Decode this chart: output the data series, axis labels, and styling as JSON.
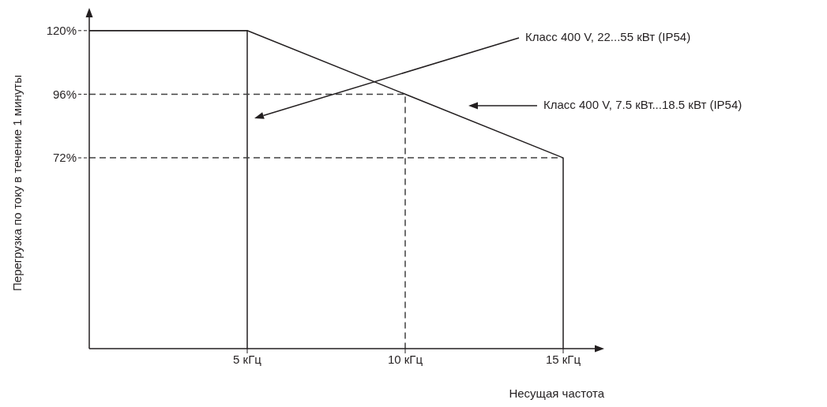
{
  "chart_data": {
    "type": "line",
    "xlabel": "Несущая частота",
    "ylabel": "Перегрузка по току в течение 1 минуты",
    "xlim": [
      0,
      16
    ],
    "ylim": [
      0,
      125
    ],
    "xticks": [
      {
        "value": 5,
        "label": "5 кГц"
      },
      {
        "value": 10,
        "label": "10 кГц"
      },
      {
        "value": 15,
        "label": "15 кГц"
      }
    ],
    "yticks": [
      {
        "value": 72,
        "label": "72%"
      },
      {
        "value": 96,
        "label": "96%"
      },
      {
        "value": 120,
        "label": "120%"
      }
    ],
    "series": [
      {
        "x": [
          0,
          5,
          5
        ],
        "values": [
          120,
          120,
          0
        ],
        "color": "#231f20",
        "line_style": "solid"
      },
      {
        "x": [
          0,
          5,
          15,
          15
        ],
        "values": [
          120,
          120,
          72,
          0
        ],
        "color": "#231f20",
        "line_style": "solid"
      },
      {
        "x": [
          0,
          10,
          10
        ],
        "values": [
          96,
          96,
          0
        ],
        "color": "#404040",
        "line_style": "dashed"
      },
      {
        "x": [
          0,
          15
        ],
        "values": [
          72,
          72
        ],
        "color": "#404040",
        "line_style": "dashed"
      }
    ],
    "annotations": [
      "Класс 400 V, 22...55 кВт (IP54)",
      "Класс 400 V, 7.5 кВт...18.5 кВт (IP54)"
    ],
    "marker": "none"
  }
}
